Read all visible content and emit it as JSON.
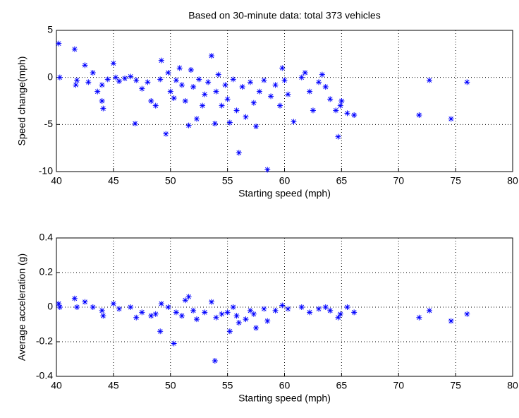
{
  "chart_data": [
    {
      "type": "scatter",
      "title": "Based on 30-minute data: total 373 vehicles",
      "x_label": "Starting speed (mph)",
      "y_label": "Speed change(mph)",
      "color": "#0000ff",
      "grid": true,
      "xlim": [
        40,
        80
      ],
      "xticks": [
        40,
        45,
        50,
        55,
        60,
        65,
        70,
        75,
        80
      ],
      "ylim": [
        -10,
        5
      ],
      "yticks": [
        -10,
        -5,
        0,
        5
      ],
      "x": [
        40.2,
        40.3,
        41.6,
        41.8,
        41.7,
        42.5,
        42.8,
        43.2,
        43.6,
        44,
        44.1,
        44,
        44.5,
        45,
        45.2,
        45.5,
        46,
        46.5,
        46.9,
        47,
        47.5,
        48,
        48.3,
        48.7,
        49.1,
        49.2,
        49.6,
        49.8,
        50,
        50.3,
        50.5,
        50.8,
        51,
        51.3,
        51.6,
        51.8,
        52,
        52.3,
        52.5,
        52.8,
        53,
        53.3,
        53.6,
        53.9,
        54,
        54.2,
        54.5,
        54.8,
        55,
        55.2,
        55.5,
        55.8,
        56,
        56.3,
        56.6,
        57,
        57.3,
        57.5,
        57.8,
        58.2,
        58.5,
        58.8,
        59.2,
        59.6,
        59.8,
        60,
        60.3,
        60.8,
        61.5,
        61.8,
        62.2,
        62.5,
        63,
        63.3,
        63.6,
        64,
        64.5,
        64.7,
        64.9,
        65,
        65.5,
        66.1,
        71.8,
        72.7,
        74.6,
        76
      ],
      "values": [
        3.6,
        0,
        3.0,
        -0.3,
        -0.8,
        1.3,
        -0.5,
        0.5,
        -1.5,
        -2.5,
        -3.3,
        -0.8,
        -0.2,
        1.5,
        0,
        -0.4,
        -0.1,
        0.1,
        -4.9,
        -0.3,
        -1.2,
        -0.5,
        -2.5,
        -3.0,
        -0.2,
        1.8,
        -6.0,
        0.5,
        -1.5,
        -2.2,
        -0.3,
        1.0,
        -0.8,
        -2.5,
        -5.1,
        0.8,
        -1.0,
        -4.4,
        -0.2,
        -3.0,
        -1.8,
        -0.5,
        2.3,
        -4.9,
        -1.5,
        0.3,
        -3.0,
        -0.8,
        -2.3,
        -4.8,
        -0.2,
        -3.5,
        -8.0,
        -1.0,
        -4.2,
        -0.5,
        -2.7,
        -5.2,
        -1.5,
        -0.3,
        -9.8,
        -2.0,
        -0.8,
        -3.0,
        1.0,
        -0.3,
        -1.8,
        -4.7,
        0,
        0.5,
        -1.5,
        -3.5,
        -0.5,
        0.3,
        -1.0,
        -2.3,
        -3.5,
        -6.3,
        -3.0,
        -2.5,
        -3.8,
        -4.0,
        -4.0,
        -0.3,
        -4.4,
        -0.5
      ]
    },
    {
      "type": "scatter",
      "x_label": "Starting speed (mph)",
      "y_label": "Average acceleration (g)",
      "color": "#0000ff",
      "grid": true,
      "xlim": [
        40,
        80
      ],
      "xticks": [
        40,
        45,
        50,
        55,
        60,
        65,
        70,
        75,
        80
      ],
      "ylim": [
        -0.4,
        0.4
      ],
      "yticks": [
        -0.4,
        -0.2,
        0,
        0.2,
        0.4
      ],
      "x": [
        40.2,
        40.3,
        41.6,
        41.8,
        42.5,
        43.2,
        44,
        44.1,
        45,
        45.5,
        46.5,
        47,
        47.5,
        48.3,
        48.7,
        49.2,
        49.1,
        49.8,
        50.3,
        50.5,
        51,
        51.3,
        51.6,
        52,
        52.3,
        53,
        53.6,
        53.9,
        54,
        54.5,
        55,
        55.2,
        55.5,
        55.8,
        56,
        56.6,
        57,
        57.3,
        57.5,
        58.2,
        58.5,
        59.2,
        59.8,
        60.3,
        61.5,
        62.2,
        63,
        63.6,
        64,
        64.7,
        64.9,
        65.5,
        66.1,
        71.8,
        72.7,
        74.6,
        76
      ],
      "values": [
        0.02,
        0,
        0.05,
        0,
        0.03,
        0,
        -0.02,
        -0.05,
        0.02,
        -0.01,
        0,
        -0.06,
        -0.03,
        -0.05,
        -0.04,
        0.02,
        -0.14,
        0,
        -0.21,
        -0.03,
        -0.05,
        0.04,
        0.06,
        -0.02,
        -0.07,
        -0.03,
        0.03,
        -0.31,
        -0.06,
        -0.04,
        -0.03,
        -0.14,
        0,
        -0.05,
        -0.09,
        -0.07,
        -0.02,
        -0.04,
        -0.12,
        -0.01,
        -0.08,
        -0.02,
        0.01,
        -0.01,
        0,
        -0.03,
        -0.01,
        0,
        -0.02,
        -0.06,
        -0.04,
        0,
        -0.03,
        -0.06,
        -0.02,
        -0.08,
        -0.04
      ]
    }
  ]
}
